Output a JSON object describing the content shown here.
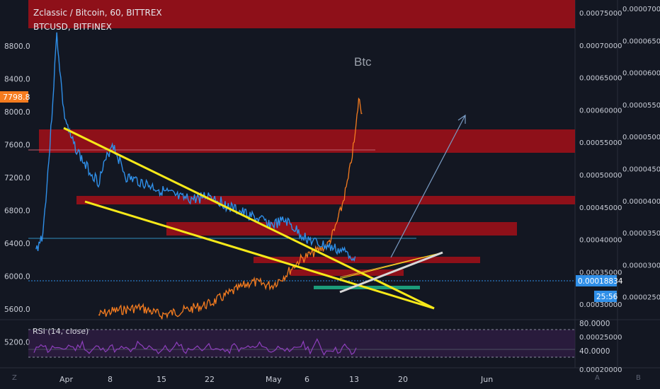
{
  "header": {
    "title": "Zclassic / Bitcoin, 60, BITTREX",
    "overlay": "BTCUSD, BITFINEX"
  },
  "rsi": {
    "label": "RSI (14, close)",
    "levels": [
      80,
      40
    ],
    "level_labels": [
      "80.0000",
      "40.0000"
    ]
  },
  "annotation": "Btc",
  "last_prices": {
    "btc": "7798.8",
    "zcl_btc": "0.00018834",
    "countdown": "25:56"
  },
  "bottom_buttons": {
    "left": "Z",
    "a": "A",
    "b": "B"
  },
  "colors": {
    "background": "#131722",
    "zcl_line": "#2f8fe8",
    "btc_line": "#f57c1f",
    "red_zone": "#b5121b",
    "trendline": "#f7e919",
    "green_zone": "#1c9c7a",
    "rsi_line": "#8e3fbd",
    "arrow": "#7a9cc4"
  },
  "chart_data": [
    {
      "type": "line",
      "title": "Zclassic / Bitcoin, 60, BITTREX",
      "x": [
        "Apr",
        "8",
        "15",
        "22",
        "May",
        "6",
        "13",
        "20",
        "Jun"
      ],
      "left_axis_ticks": [
        "8800.0",
        "8400.0",
        "8000.0",
        "7600.0",
        "7200.0",
        "6800.0",
        "6400.0",
        "6000.0",
        "5600.0",
        "5200.0"
      ],
      "right_axis_inner_ticks": [
        "0.00075000",
        "0.00070000",
        "0.00065000",
        "0.00060000",
        "0.00055000",
        "0.00050000",
        "0.00045000",
        "0.00040000",
        "0.00035000",
        "0.00030000",
        "0.00025000",
        "0.00020000"
      ],
      "right_axis_outer_ticks": [
        "0.00007000",
        "0.00006500",
        "0.00006000",
        "0.00005500",
        "0.00005000",
        "0.00004500",
        "0.00004000",
        "0.00003500",
        "0.00003000",
        "0.00002500"
      ],
      "ylim_btc": [
        5100,
        8900
      ],
      "series": [
        {
          "name": "Zclassic / Bitcoin",
          "axis": "right",
          "points": [
            [
              "Mar 28",
              0.0002
            ],
            [
              "Mar 29",
              0.00024
            ],
            [
              "Mar 30",
              0.00044
            ],
            [
              "Mar 31",
              0.0007
            ],
            [
              "Apr 1",
              0.00052
            ],
            [
              "Apr 2",
              0.00046
            ],
            [
              "Apr 3",
              0.00043
            ],
            [
              "Apr 4",
              0.0004
            ],
            [
              "Apr 6",
              0.00036
            ],
            [
              "Apr 8",
              0.00045
            ],
            [
              "Apr 10",
              0.00037
            ],
            [
              "Apr 12",
              0.00036
            ],
            [
              "Apr 15",
              0.00034
            ],
            [
              "Apr 18",
              0.00032
            ],
            [
              "Apr 20",
              0.00032
            ],
            [
              "Apr 22",
              0.00033
            ],
            [
              "Apr 25",
              0.0003
            ],
            [
              "Apr 28",
              0.00028
            ],
            [
              "May 1",
              0.00026
            ],
            [
              "May 3",
              0.00027
            ],
            [
              "May 5",
              0.00024
            ],
            [
              "May 7",
              0.00022
            ],
            [
              "May 9",
              0.00021
            ],
            [
              "May 11",
              0.0002
            ],
            [
              "May 13",
              0.000188
            ]
          ]
        },
        {
          "name": "BTCUSD, BITFINEX",
          "axis": "left",
          "points": [
            [
              "Apr 6",
              5150
            ],
            [
              "Apr 8",
              5200
            ],
            [
              "Apr 12",
              5250
            ],
            [
              "Apr 15",
              5150
            ],
            [
              "Apr 18",
              5200
            ],
            [
              "Apr 22",
              5300
            ],
            [
              "Apr 25",
              5450
            ],
            [
              "Apr 28",
              5600
            ],
            [
              "May 1",
              5550
            ],
            [
              "May 3",
              5700
            ],
            [
              "May 5",
              5900
            ],
            [
              "May 7",
              6000
            ],
            [
              "May 9",
              6100
            ],
            [
              "May 10",
              6300
            ],
            [
              "May 11",
              6600
            ],
            [
              "May 12",
              7000
            ],
            [
              "May 13",
              7600
            ],
            [
              "May 13.5",
              8100
            ],
            [
              "May 14",
              7900
            ]
          ]
        }
      ],
      "grid": false,
      "legend": "top-left"
    },
    {
      "type": "line",
      "title": "RSI (14, close)",
      "ylim": [
        20,
        90
      ],
      "bands": [
        40,
        80
      ],
      "series": [
        {
          "name": "RSI (14, close)",
          "values": [
            45,
            62,
            50,
            55,
            48,
            58,
            52,
            60,
            46,
            55,
            50,
            57,
            49,
            54,
            47,
            59,
            51,
            56,
            48,
            53,
            50,
            61,
            47,
            55,
            52,
            58,
            49,
            54,
            46,
            57,
            50,
            55,
            53,
            60,
            48,
            52,
            57,
            44,
            55,
            58,
            50,
            62,
            47,
            53,
            49,
            56,
            45,
            52
          ]
        }
      ]
    }
  ]
}
